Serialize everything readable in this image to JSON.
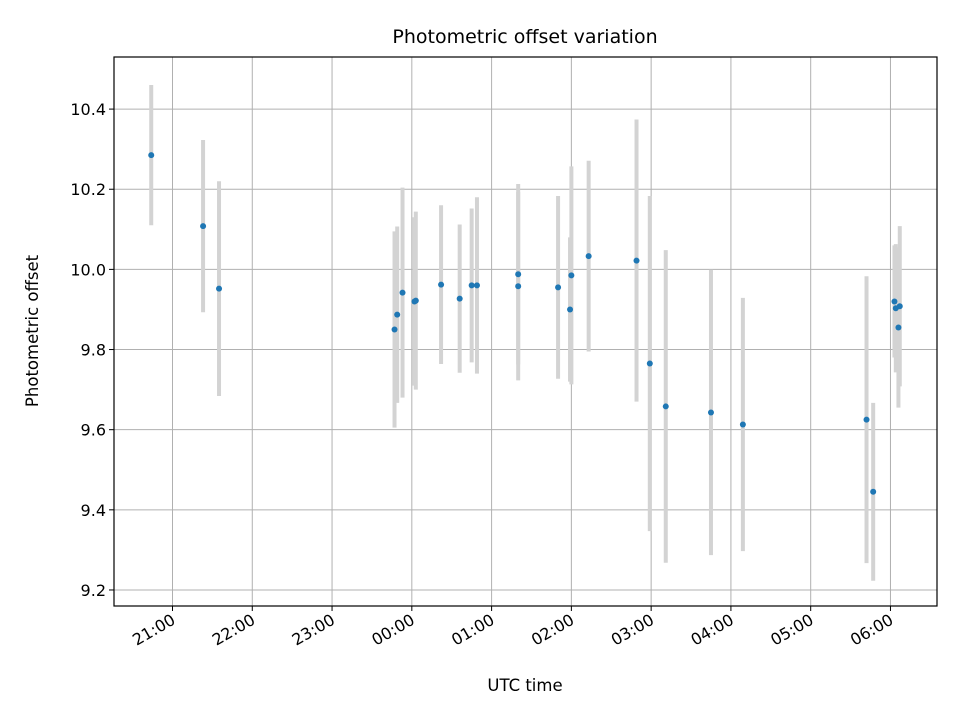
{
  "chart_data": {
    "type": "scatter",
    "title": "Photometric offset variation",
    "xlabel": "UTC time",
    "ylabel": "Photometric offset",
    "grid": true,
    "x_tick_labels": [
      "21:00",
      "22:00",
      "23:00",
      "00:00",
      "01:00",
      "02:00",
      "03:00",
      "04:00",
      "05:00",
      "06:00"
    ],
    "y_tick_labels": [
      "9.2",
      "9.4",
      "9.6",
      "9.8",
      "10.0",
      "10.2",
      "10.4"
    ],
    "ylim": [
      9.16,
      10.53
    ],
    "xlim": [
      "20:16",
      "06:35"
    ],
    "point_color": "#1f77b4",
    "errorbar_color": "#d3d3d3",
    "points": [
      {
        "t": "20:44",
        "y": 10.285,
        "err": 0.175
      },
      {
        "t": "21:23",
        "y": 10.108,
        "err": 0.215
      },
      {
        "t": "21:35",
        "y": 9.952,
        "err": 0.268
      },
      {
        "t": "23:47",
        "y": 9.85,
        "err": 0.245
      },
      {
        "t": "23:49",
        "y": 9.887,
        "err": 0.22
      },
      {
        "t": "23:53",
        "y": 9.942,
        "err": 0.262
      },
      {
        "t": "00:02",
        "y": 9.92,
        "err": 0.21
      },
      {
        "t": "00:03",
        "y": 9.922,
        "err": 0.222
      },
      {
        "t": "00:22",
        "y": 9.962,
        "err": 0.198
      },
      {
        "t": "00:36",
        "y": 9.927,
        "err": 0.185
      },
      {
        "t": "00:45",
        "y": 9.96,
        "err": 0.192
      },
      {
        "t": "00:49",
        "y": 9.96,
        "err": 0.22
      },
      {
        "t": "01:20",
        "y": 9.988,
        "err": 0.225
      },
      {
        "t": "01:20",
        "y": 9.958,
        "err": 0.235
      },
      {
        "t": "01:50",
        "y": 9.955,
        "err": 0.228
      },
      {
        "t": "01:59",
        "y": 9.9,
        "err": 0.18
      },
      {
        "t": "02:00",
        "y": 9.985,
        "err": 0.272
      },
      {
        "t": "02:13",
        "y": 10.033,
        "err": 0.238
      },
      {
        "t": "02:49",
        "y": 10.022,
        "err": 0.352
      },
      {
        "t": "02:59",
        "y": 9.765,
        "err": 0.418
      },
      {
        "t": "03:11",
        "y": 9.658,
        "err": 0.39
      },
      {
        "t": "03:45",
        "y": 9.643,
        "err": 0.356
      },
      {
        "t": "04:09",
        "y": 9.613,
        "err": 0.316
      },
      {
        "t": "05:42",
        "y": 9.625,
        "err": 0.358
      },
      {
        "t": "05:47",
        "y": 9.445,
        "err": 0.222
      },
      {
        "t": "06:03",
        "y": 9.92,
        "err": 0.14
      },
      {
        "t": "06:04",
        "y": 9.903,
        "err": 0.16
      },
      {
        "t": "06:06",
        "y": 9.855,
        "err": 0.2
      },
      {
        "t": "06:07",
        "y": 9.908,
        "err": 0.2
      }
    ]
  }
}
